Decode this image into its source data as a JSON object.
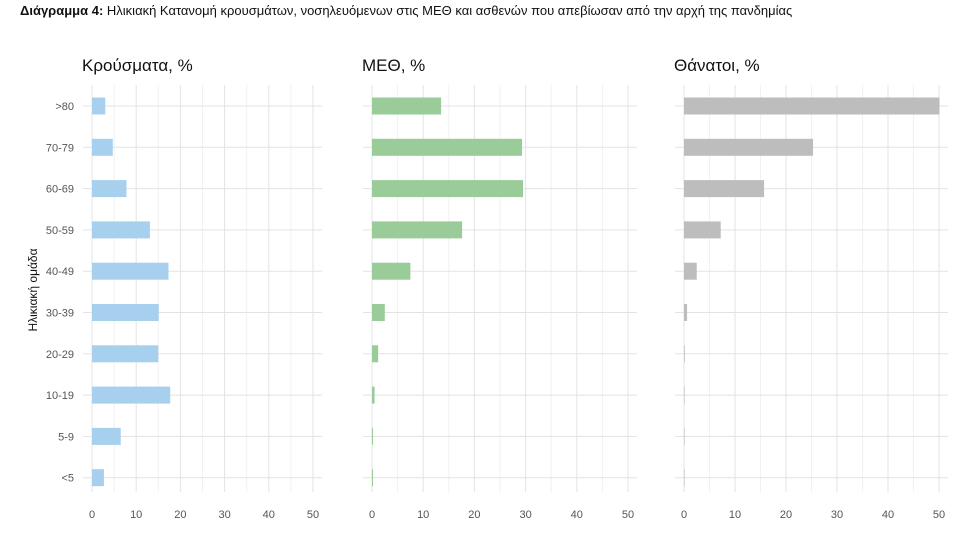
{
  "caption": {
    "label": "Διάγραμμα 4:",
    "text": "Ηλικιακή Κατανομή κρουσμάτων, νοσηλευόμενων στις ΜΕΘ και ασθενών που απεβίωσαν από την αρχή της πανδημίας"
  },
  "chart_data": {
    "type": "bar",
    "orientation": "horizontal",
    "ylabel": "Ηλικιακή ομάδα",
    "categories": [
      ">80",
      "70-79",
      "60-69",
      "50-59",
      "40-49",
      "30-39",
      "20-29",
      "10-19",
      "5-9",
      "<5"
    ],
    "xlim": [
      0,
      52
    ],
    "xticks": [
      0,
      10,
      20,
      30,
      40,
      50
    ],
    "grid": true,
    "legend": "none",
    "panels": [
      {
        "title": "Κρούσματα, %",
        "color": "#a6d0ee",
        "values": [
          3.0,
          4.7,
          7.8,
          13.1,
          17.3,
          15.1,
          15.0,
          17.7,
          6.5,
          2.7
        ]
      },
      {
        "title": "ΜΕΘ, %",
        "color": "#99cc99",
        "values": [
          13.5,
          29.3,
          29.5,
          17.6,
          7.5,
          2.5,
          1.2,
          0.5,
          0.2,
          0.2
        ]
      },
      {
        "title": "Θάνατοι, %",
        "color": "#bdbdbd",
        "values": [
          50.1,
          25.3,
          15.7,
          7.2,
          2.5,
          0.6,
          0.15,
          0.1,
          0.05,
          0.05
        ]
      }
    ]
  }
}
